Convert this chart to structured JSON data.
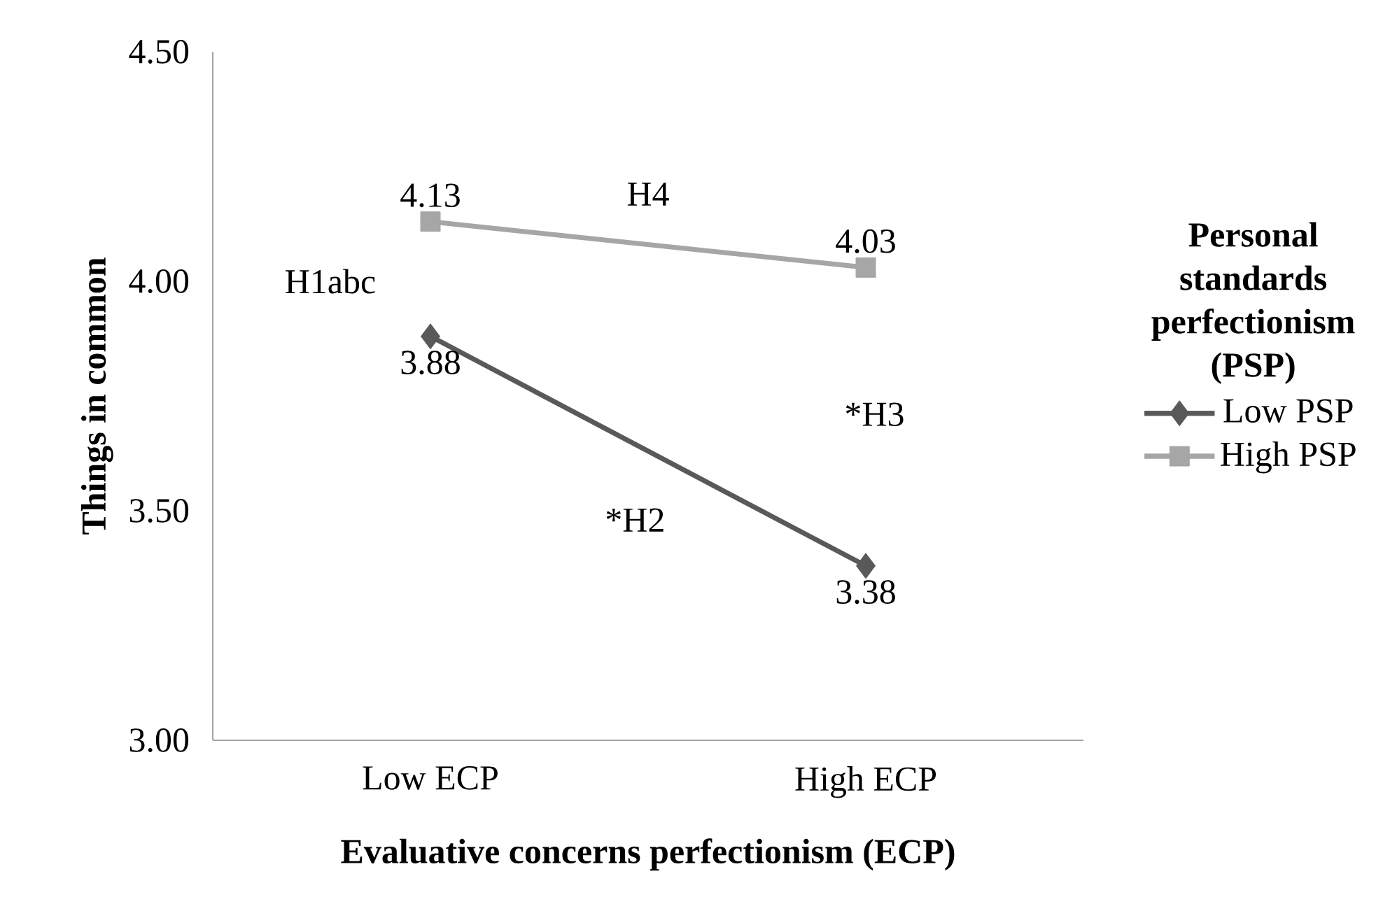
{
  "chart_data": {
    "type": "line",
    "xlabel": "Evaluative concerns perfectionism (ECP)",
    "ylabel": "Things in common",
    "legend_title": "Personal standards perfectionism (PSP)",
    "categories": [
      "Low ECP",
      "High ECP"
    ],
    "series": [
      {
        "name": "Low PSP",
        "color": "#595959",
        "marker": "diamond",
        "values": [
          3.88,
          3.38
        ]
      },
      {
        "name": "High PSP",
        "color": "#a6a6a6",
        "marker": "square",
        "values": [
          4.13,
          4.03
        ]
      }
    ],
    "ylim": [
      3,
      4.5
    ],
    "yticks": [
      {
        "value": 3,
        "label": "3.00"
      },
      {
        "value": 3.5,
        "label": "3.50"
      },
      {
        "value": 4,
        "label": "4.00"
      },
      {
        "value": 4.5,
        "label": "4.50"
      }
    ],
    "data_labels": true,
    "legend": "right",
    "grid": false,
    "line_style": "solid",
    "annotations": [
      "H1abc",
      "H4",
      "*H3",
      "*H2"
    ]
  }
}
